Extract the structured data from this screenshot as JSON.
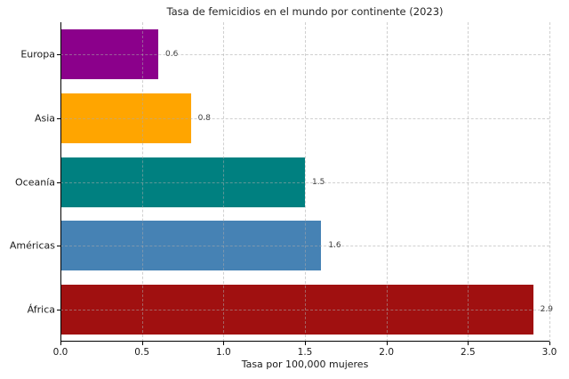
{
  "chart_data": {
    "type": "bar",
    "orientation": "horizontal",
    "title": "Tasa de femicidios en el mundo por continente (2023)",
    "xlabel": "Tasa por 100,000 mujeres",
    "ylabel": "",
    "categories": [
      "Europa",
      "Asia",
      "Oceanía",
      "Américas",
      "África"
    ],
    "values": [
      0.6,
      0.8,
      1.5,
      1.6,
      2.9
    ],
    "value_labels": [
      "0.6",
      "0.8",
      "1.5",
      "1.6",
      "2.9"
    ],
    "bar_colors": [
      "#8B008B",
      "#FFA500",
      "#008080",
      "#4682B4",
      "#A01010"
    ],
    "xlim": [
      0.0,
      3.0
    ],
    "xticks": [
      0.0,
      0.5,
      1.0,
      1.5,
      2.0,
      2.5,
      3.0
    ],
    "xtick_labels": [
      "0.0",
      "0.5",
      "1.0",
      "1.5",
      "2.0",
      "2.5",
      "3.0"
    ],
    "grid": "dashed",
    "grid_color": "#aaaaaa",
    "legend": "none",
    "spine_color": "#000000",
    "background": "#ffffff"
  }
}
